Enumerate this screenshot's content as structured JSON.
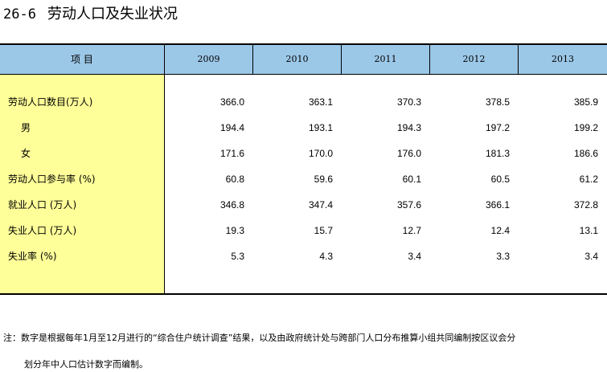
{
  "title": {
    "number": "26-6",
    "text": "劳动人口及失业状况"
  },
  "table": {
    "header": [
      "项    目",
      "2009",
      "2010",
      "2011",
      "2012",
      "2013"
    ],
    "rows": [
      {
        "label": "劳动人口数目(万人)",
        "indent": false,
        "values": [
          "366.0",
          "363.1",
          "370.3",
          "378.5",
          "385.9"
        ]
      },
      {
        "label": "男",
        "indent": true,
        "values": [
          "194.4",
          "193.1",
          "194.3",
          "197.2",
          "199.2"
        ]
      },
      {
        "label": "女",
        "indent": true,
        "values": [
          "171.6",
          "170.0",
          "176.0",
          "181.3",
          "186.6"
        ]
      },
      {
        "label": "劳动人口参与率 (%)",
        "indent": false,
        "values": [
          "60.8",
          "59.6",
          "60.1",
          "60.5",
          "61.2"
        ]
      },
      {
        "label": "就业人口    (万人)",
        "indent": false,
        "values": [
          "346.8",
          "347.4",
          "357.6",
          "366.1",
          "372.8"
        ]
      },
      {
        "label": "失业人口    (万人)",
        "indent": false,
        "values": [
          "19.3",
          "15.7",
          "12.7",
          "12.4",
          "13.1"
        ]
      },
      {
        "label": "失业率           (%)",
        "indent": false,
        "values": [
          "5.3",
          "4.3",
          "3.4",
          "3.3",
          "3.4"
        ]
      }
    ]
  },
  "note": {
    "line1": "注：数字是根据每年1月至12月进行的“综合住户统计调查”结果，以及由政府统计处与跨部门人口分布推算小组共同编制按区议会分",
    "line2": "划分年中人口估计数字而编制。"
  },
  "colors": {
    "header_bg": "#9cc8e8",
    "stub_bg": "#ffff99"
  }
}
